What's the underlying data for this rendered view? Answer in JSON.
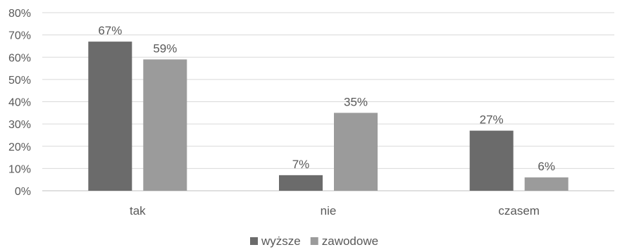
{
  "chart_data": {
    "type": "bar",
    "title": "",
    "xlabel": "",
    "ylabel": "",
    "categories": [
      "tak",
      "nie",
      "czasem"
    ],
    "series": [
      {
        "name": "wyższe",
        "values": [
          67,
          7,
          27
        ],
        "labels": [
          "67%",
          "7%",
          "27%"
        ],
        "color": "#6b6b6b"
      },
      {
        "name": "zawodowe",
        "values": [
          59,
          35,
          6
        ],
        "labels": [
          "59%",
          "35%",
          "6%"
        ],
        "color": "#9b9b9b"
      }
    ],
    "ylim": [
      0,
      80
    ],
    "yticks": [
      0,
      10,
      20,
      30,
      40,
      50,
      60,
      70,
      80
    ],
    "ytick_labels": [
      "0%",
      "10%",
      "20%",
      "30%",
      "40%",
      "50%",
      "60%",
      "70%",
      "80%"
    ],
    "grid": true,
    "legend": "bottom"
  }
}
